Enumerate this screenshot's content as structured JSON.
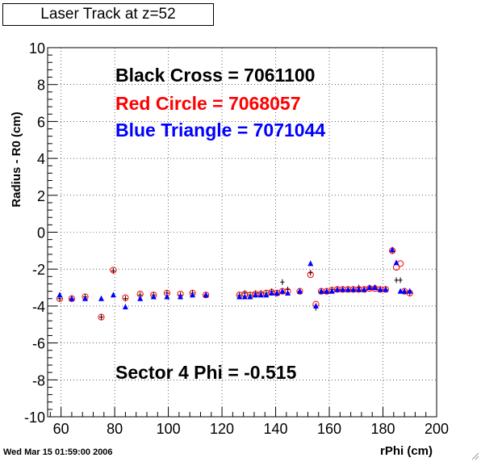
{
  "chart_data": {
    "type": "scatter",
    "title": "Laser Track at z=52",
    "xlabel": "rPhi (cm)",
    "ylabel": "Radius - R0 (cm)",
    "xlim": [
      55,
      200
    ],
    "ylim": [
      -10,
      10
    ],
    "xticks": [
      60,
      80,
      100,
      120,
      140,
      160,
      180,
      200
    ],
    "yticks": [
      -10,
      -8,
      -6,
      -4,
      -2,
      0,
      2,
      4,
      6,
      8,
      10
    ],
    "grid": true,
    "annotations": {
      "black": "Black Cross  = 7061100",
      "red": "Red Circle = 7068057",
      "blue": "Blue Triangle = 7071044",
      "sector": "Sector 4 Phi = -0.515"
    },
    "series": [
      {
        "marker": "cross",
        "color": "#000000",
        "points": [
          [
            59.5,
            -3.6
          ],
          [
            64,
            -3.6
          ],
          [
            69,
            -3.5
          ],
          [
            75,
            -4.6
          ],
          [
            79.5,
            -2.1
          ],
          [
            84,
            -3.6
          ],
          [
            89.5,
            -3.4
          ],
          [
            94.5,
            -3.4
          ],
          [
            99.5,
            -3.3
          ],
          [
            104.5,
            -3.4
          ],
          [
            109,
            -3.3
          ],
          [
            114,
            -3.4
          ],
          [
            126.5,
            -3.4
          ],
          [
            128.5,
            -3.3
          ],
          [
            130.5,
            -3.4
          ],
          [
            132.5,
            -3.3
          ],
          [
            134.5,
            -3.3
          ],
          [
            136.5,
            -3.3
          ],
          [
            138.5,
            -3.2
          ],
          [
            140.5,
            -3.3
          ],
          [
            142.5,
            -2.7
          ],
          [
            144.5,
            -3.1
          ],
          [
            149,
            -3.2
          ],
          [
            153,
            -2.2
          ],
          [
            155,
            -4.1
          ],
          [
            157,
            -3.2
          ],
          [
            159,
            -3.2
          ],
          [
            161,
            -3.1
          ],
          [
            163,
            -3.1
          ],
          [
            165,
            -3.1
          ],
          [
            167,
            -3.1
          ],
          [
            169,
            -3.1
          ],
          [
            171,
            -3.0
          ],
          [
            173,
            -3.1
          ],
          [
            175,
            -3.0
          ],
          [
            177,
            -3.0
          ],
          [
            179,
            -3.1
          ],
          [
            181,
            -3.1
          ],
          [
            183.5,
            -1.0
          ],
          [
            185,
            -2.6
          ],
          [
            186.5,
            -2.6
          ],
          [
            188,
            -3.2
          ],
          [
            190,
            -3.3
          ]
        ]
      },
      {
        "marker": "circle",
        "color": "#ff0000",
        "points": [
          [
            59.5,
            -3.6
          ],
          [
            64,
            -3.6
          ],
          [
            69,
            -3.5
          ],
          [
            75,
            -4.6
          ],
          [
            79.5,
            -2.05
          ],
          [
            84,
            -3.55
          ],
          [
            89.5,
            -3.35
          ],
          [
            94.5,
            -3.4
          ],
          [
            99.5,
            -3.3
          ],
          [
            104.5,
            -3.35
          ],
          [
            109,
            -3.3
          ],
          [
            114,
            -3.4
          ],
          [
            126.5,
            -3.4
          ],
          [
            128.5,
            -3.35
          ],
          [
            130.5,
            -3.4
          ],
          [
            132.5,
            -3.35
          ],
          [
            134.5,
            -3.35
          ],
          [
            136.5,
            -3.3
          ],
          [
            138.5,
            -3.25
          ],
          [
            140.5,
            -3.3
          ],
          [
            142.5,
            -3.2
          ],
          [
            144.5,
            -3.2
          ],
          [
            149,
            -3.2
          ],
          [
            153,
            -2.3
          ],
          [
            155,
            -3.9
          ],
          [
            157,
            -3.2
          ],
          [
            159,
            -3.2
          ],
          [
            161,
            -3.15
          ],
          [
            163,
            -3.1
          ],
          [
            165,
            -3.1
          ],
          [
            167,
            -3.1
          ],
          [
            169,
            -3.1
          ],
          [
            171,
            -3.1
          ],
          [
            173,
            -3.1
          ],
          [
            175,
            -3.05
          ],
          [
            177,
            -3.05
          ],
          [
            179,
            -3.1
          ],
          [
            181,
            -3.1
          ],
          [
            183.5,
            -1.0
          ],
          [
            185,
            -1.9
          ],
          [
            186.5,
            -1.7
          ],
          [
            188,
            -3.2
          ],
          [
            190,
            -3.3
          ]
        ]
      },
      {
        "marker": "triangle",
        "color": "#0000ff",
        "points": [
          [
            59.5,
            -3.4
          ],
          [
            64,
            -3.6
          ],
          [
            69,
            -3.6
          ],
          [
            75,
            -3.6
          ],
          [
            79.5,
            -3.4
          ],
          [
            84,
            -4.05
          ],
          [
            89.5,
            -3.6
          ],
          [
            94.5,
            -3.5
          ],
          [
            99.5,
            -3.5
          ],
          [
            104.5,
            -3.5
          ],
          [
            109,
            -3.4
          ],
          [
            114,
            -3.4
          ],
          [
            126.5,
            -3.5
          ],
          [
            128.5,
            -3.5
          ],
          [
            130.5,
            -3.5
          ],
          [
            132.5,
            -3.4
          ],
          [
            134.5,
            -3.4
          ],
          [
            136.5,
            -3.4
          ],
          [
            138.5,
            -3.3
          ],
          [
            140.5,
            -3.3
          ],
          [
            142.5,
            -3.2
          ],
          [
            144.5,
            -3.3
          ],
          [
            149,
            -3.2
          ],
          [
            153,
            -1.7
          ],
          [
            155,
            -4.0
          ],
          [
            157,
            -3.2
          ],
          [
            159,
            -3.2
          ],
          [
            161,
            -3.2
          ],
          [
            163,
            -3.1
          ],
          [
            165,
            -3.1
          ],
          [
            167,
            -3.1
          ],
          [
            169,
            -3.1
          ],
          [
            171,
            -3.1
          ],
          [
            173,
            -3.1
          ],
          [
            175,
            -3.0
          ],
          [
            177,
            -3.0
          ],
          [
            179,
            -3.1
          ],
          [
            181,
            -3.1
          ],
          [
            183.5,
            -0.95
          ],
          [
            185,
            -1.65
          ],
          [
            186.5,
            -3.2
          ],
          [
            188,
            -3.2
          ],
          [
            190,
            -3.2
          ]
        ]
      }
    ]
  },
  "footer": {
    "timestamp": "Wed Mar 15 01:59:00 2006"
  },
  "colors": {
    "black_series": "#000000",
    "red_series": "#ff0000",
    "blue_series": "#0000ff",
    "background": "#ffffff"
  }
}
